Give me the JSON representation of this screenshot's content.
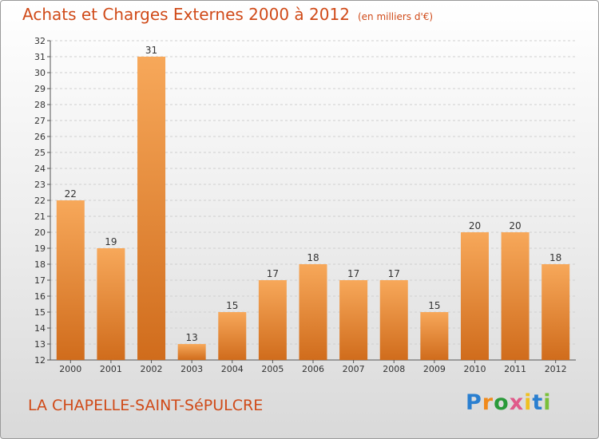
{
  "header": {
    "title": "Achats et Charges Externes 2000 à 2012",
    "unit": "(en milliers d'€)"
  },
  "footer": {
    "town": "LA CHAPELLE-SAINT-SéPULCRE",
    "brand": "Proxiti"
  },
  "colors": {
    "accent": "#d04a18",
    "bar_light": "#f7a85a",
    "bar_dark": "#d06c1c"
  },
  "chart_data": {
    "type": "bar",
    "categories": [
      "2000",
      "2001",
      "2002",
      "2003",
      "2004",
      "2005",
      "2006",
      "2007",
      "2008",
      "2009",
      "2010",
      "2011",
      "2012"
    ],
    "values": [
      22,
      19,
      31,
      13,
      15,
      17,
      18,
      17,
      17,
      15,
      20,
      20,
      18
    ],
    "title": "Achats et Charges Externes 2000 à 2012",
    "ylim": [
      12,
      32
    ],
    "yticks": [
      12,
      13,
      14,
      15,
      16,
      17,
      18,
      19,
      20,
      21,
      22,
      23,
      24,
      25,
      26,
      27,
      28,
      29,
      30,
      31,
      32
    ],
    "grid": true,
    "legend": "none"
  }
}
